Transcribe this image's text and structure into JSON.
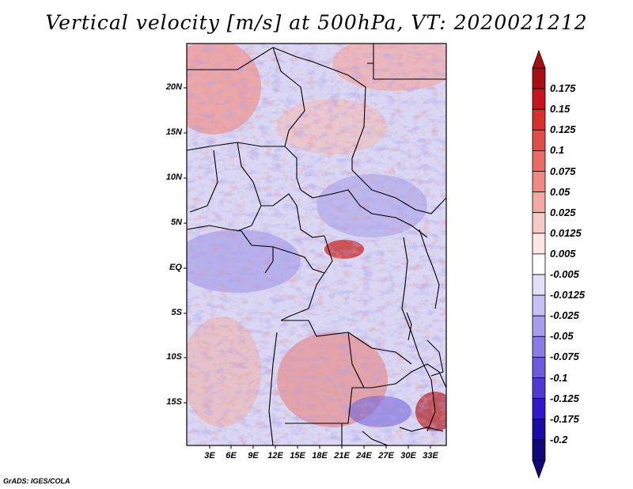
{
  "title": "Vertical velocity [m/s] at 500hPa, VT: 2020021212",
  "credit": "GrADS: IGES/COLA",
  "map": {
    "lat_labels": [
      "20N",
      "15N",
      "10N",
      "5N",
      "EQ",
      "5S",
      "10S",
      "15S"
    ],
    "lon_labels": [
      "3E",
      "6E",
      "9E",
      "12E",
      "15E",
      "18E",
      "21E",
      "24E",
      "27E",
      "30E",
      "33E"
    ]
  },
  "colorbar": {
    "labels": [
      "0.175",
      "0.15",
      "0.125",
      "0.1",
      "0.075",
      "0.05",
      "0.025",
      "0.0125",
      "0.005",
      "-0.005",
      "-0.0125",
      "-0.025",
      "-0.05",
      "-0.075",
      "-0.1",
      "-0.125",
      "-0.175",
      "-0.2"
    ],
    "colors": [
      "#a50f15",
      "#c4161c",
      "#d6312f",
      "#e04e49",
      "#e86b64",
      "#ef8982",
      "#f5a8a3",
      "#f9c9c6",
      "#fde6e4",
      "#ffffff",
      "#e3e0fa",
      "#c6c0f4",
      "#a79ded",
      "#8a7ce6",
      "#6c5bde",
      "#4e39d4",
      "#3018c4",
      "#1a0aa6",
      "#120778"
    ],
    "top_color": "#a50f15",
    "bottom_color": "#120778"
  }
}
